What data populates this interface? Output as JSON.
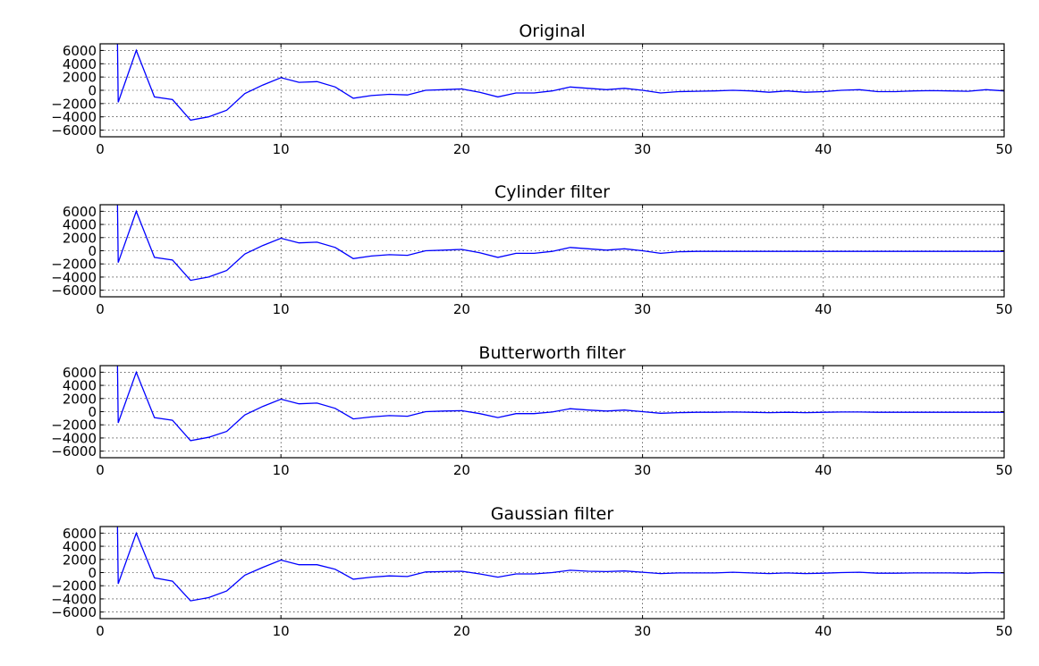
{
  "chart_data": [
    {
      "type": "line",
      "title": "Original",
      "xlim": [
        0,
        50
      ],
      "ylim": [
        -7000,
        7000
      ],
      "xticks": [
        "0",
        "10",
        "20",
        "30",
        "40",
        "50"
      ],
      "yticks": [
        "6000",
        "4000",
        "2000",
        "0",
        "−2000",
        "−4000",
        "−6000"
      ],
      "grid": true,
      "series": [
        {
          "color": "#0000ff",
          "x": [
            0.95,
            1,
            2,
            3,
            4,
            5,
            6,
            7,
            8,
            9,
            10,
            11,
            12,
            13,
            14,
            15,
            16,
            17,
            18,
            19,
            20,
            21,
            22,
            23,
            24,
            25,
            26,
            27,
            28,
            29,
            30,
            31,
            32,
            33,
            34,
            35,
            36,
            37,
            38,
            39,
            40,
            41,
            42,
            43,
            44,
            45,
            46,
            47,
            48,
            49,
            50
          ],
          "y": [
            9000,
            -1800,
            6000,
            -1000,
            -1400,
            -4500,
            -4000,
            -3000,
            -500,
            800,
            1900,
            1200,
            1300,
            500,
            -1200,
            -800,
            -600,
            -700,
            0,
            100,
            200,
            -300,
            -1000,
            -400,
            -400,
            -100,
            500,
            300,
            100,
            300,
            0,
            -400,
            -200,
            -150,
            -100,
            0,
            -100,
            -300,
            -100,
            -300,
            -200,
            0,
            100,
            -200,
            -200,
            -100,
            -50,
            -100,
            -150,
            100,
            -100
          ]
        }
      ]
    },
    {
      "type": "line",
      "title": "Cylinder filter",
      "xlim": [
        0,
        50
      ],
      "ylim": [
        -7000,
        7000
      ],
      "xticks": [
        "0",
        "10",
        "20",
        "30",
        "40",
        "50"
      ],
      "yticks": [
        "6000",
        "4000",
        "2000",
        "0",
        "−2000",
        "−4000",
        "−6000"
      ],
      "grid": true,
      "series": [
        {
          "color": "#0000ff",
          "x": [
            0.95,
            1,
            2,
            3,
            4,
            5,
            6,
            7,
            8,
            9,
            10,
            11,
            12,
            13,
            14,
            15,
            16,
            17,
            18,
            19,
            20,
            21,
            22,
            23,
            24,
            25,
            26,
            27,
            28,
            29,
            30,
            31,
            32,
            33,
            34,
            35,
            36,
            37,
            38,
            39,
            40,
            41,
            42,
            43,
            44,
            45,
            46,
            47,
            48,
            49,
            50
          ],
          "y": [
            9000,
            -1800,
            6000,
            -1000,
            -1400,
            -4500,
            -4000,
            -3000,
            -500,
            800,
            1900,
            1200,
            1300,
            500,
            -1200,
            -800,
            -600,
            -700,
            0,
            100,
            200,
            -300,
            -1000,
            -400,
            -400,
            -100,
            500,
            300,
            100,
            300,
            0,
            -400,
            -150,
            -100,
            -100,
            -100,
            -100,
            -100,
            -100,
            -100,
            -100,
            -100,
            -100,
            -100,
            -100,
            -100,
            -100,
            -100,
            -100,
            -100,
            -100
          ]
        }
      ]
    },
    {
      "type": "line",
      "title": "Butterworth filter",
      "xlim": [
        0,
        50
      ],
      "ylim": [
        -7000,
        7000
      ],
      "xticks": [
        "0",
        "10",
        "20",
        "30",
        "40",
        "50"
      ],
      "yticks": [
        "6000",
        "4000",
        "2000",
        "0",
        "−2000",
        "−4000",
        "−6000"
      ],
      "grid": true,
      "series": [
        {
          "color": "#0000ff",
          "x": [
            0.95,
            1,
            2,
            3,
            4,
            5,
            6,
            7,
            8,
            9,
            10,
            11,
            12,
            13,
            14,
            15,
            16,
            17,
            18,
            19,
            20,
            21,
            22,
            23,
            24,
            25,
            26,
            27,
            28,
            29,
            30,
            31,
            32,
            33,
            34,
            35,
            36,
            37,
            38,
            39,
            40,
            41,
            42,
            43,
            44,
            45,
            46,
            47,
            48,
            49,
            50
          ],
          "y": [
            9000,
            -1700,
            6000,
            -900,
            -1300,
            -4400,
            -3900,
            -3000,
            -500,
            800,
            1900,
            1200,
            1300,
            500,
            -1100,
            -800,
            -600,
            -700,
            0,
            100,
            150,
            -300,
            -900,
            -300,
            -300,
            -50,
            450,
            250,
            100,
            250,
            0,
            -250,
            -150,
            -100,
            -100,
            -50,
            -100,
            -150,
            -100,
            -150,
            -100,
            -50,
            -50,
            -100,
            -100,
            -100,
            -100,
            -100,
            -100,
            -100,
            -100
          ]
        }
      ]
    },
    {
      "type": "line",
      "title": "Gaussian filter",
      "xlim": [
        0,
        50
      ],
      "ylim": [
        -7000,
        7000
      ],
      "xticks": [
        "0",
        "10",
        "20",
        "30",
        "40",
        "50"
      ],
      "yticks": [
        "6000",
        "4000",
        "2000",
        "0",
        "−2000",
        "−4000",
        "−6000"
      ],
      "grid": true,
      "series": [
        {
          "color": "#0000ff",
          "x": [
            0.95,
            1,
            2,
            3,
            4,
            5,
            6,
            7,
            8,
            9,
            10,
            11,
            12,
            13,
            14,
            15,
            16,
            17,
            18,
            19,
            20,
            21,
            22,
            23,
            24,
            25,
            26,
            27,
            28,
            29,
            30,
            31,
            32,
            33,
            34,
            35,
            36,
            37,
            38,
            39,
            40,
            41,
            42,
            43,
            44,
            45,
            46,
            47,
            48,
            49,
            50
          ],
          "y": [
            9000,
            -1700,
            6000,
            -800,
            -1300,
            -4300,
            -3800,
            -2800,
            -400,
            800,
            1900,
            1200,
            1200,
            500,
            -1000,
            -700,
            -500,
            -600,
            100,
            150,
            200,
            -200,
            -700,
            -200,
            -200,
            0,
            350,
            200,
            150,
            250,
            50,
            -150,
            -50,
            -50,
            -50,
            50,
            -50,
            -150,
            -50,
            -150,
            -100,
            0,
            50,
            -100,
            -100,
            -50,
            -50,
            -50,
            -100,
            0,
            -50
          ]
        }
      ]
    }
  ]
}
